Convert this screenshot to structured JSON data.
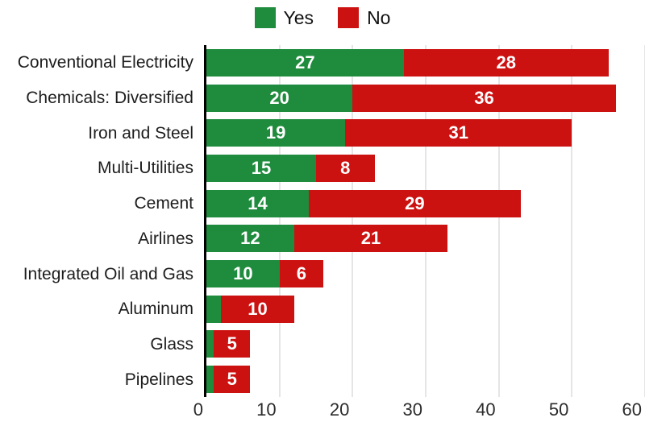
{
  "legend": {
    "items": [
      {
        "label": "Yes",
        "color": "#1e8b3d"
      },
      {
        "label": "No",
        "color": "#cc1111"
      }
    ]
  },
  "chart_data": {
    "type": "bar",
    "orientation": "horizontal",
    "stacked": true,
    "title": "",
    "categories": [
      "Conventional Electricity",
      "Chemicals: Diversified",
      "Iron and Steel",
      "Multi-Utilities",
      "Cement",
      "Airlines",
      "Integrated Oil and Gas",
      "Aluminum",
      "Glass",
      "Pipelines"
    ],
    "series": [
      {
        "name": "Yes",
        "color": "#1e8b3d",
        "values": [
          27,
          20,
          19,
          15,
          14,
          12,
          10,
          2,
          1,
          1
        ]
      },
      {
        "name": "No",
        "color": "#cc1111",
        "values": [
          28,
          36,
          31,
          8,
          29,
          21,
          6,
          10,
          5,
          5
        ]
      }
    ],
    "xlim": [
      0,
      60
    ],
    "xticks": [
      0,
      10,
      20,
      30,
      40,
      50,
      60
    ],
    "grid": "vertical",
    "gridline_color": "#e5e5e5",
    "legend_position": "top",
    "value_label_min": 5,
    "value_label_color": "#ffffff",
    "axis_line_color": "#000000"
  }
}
